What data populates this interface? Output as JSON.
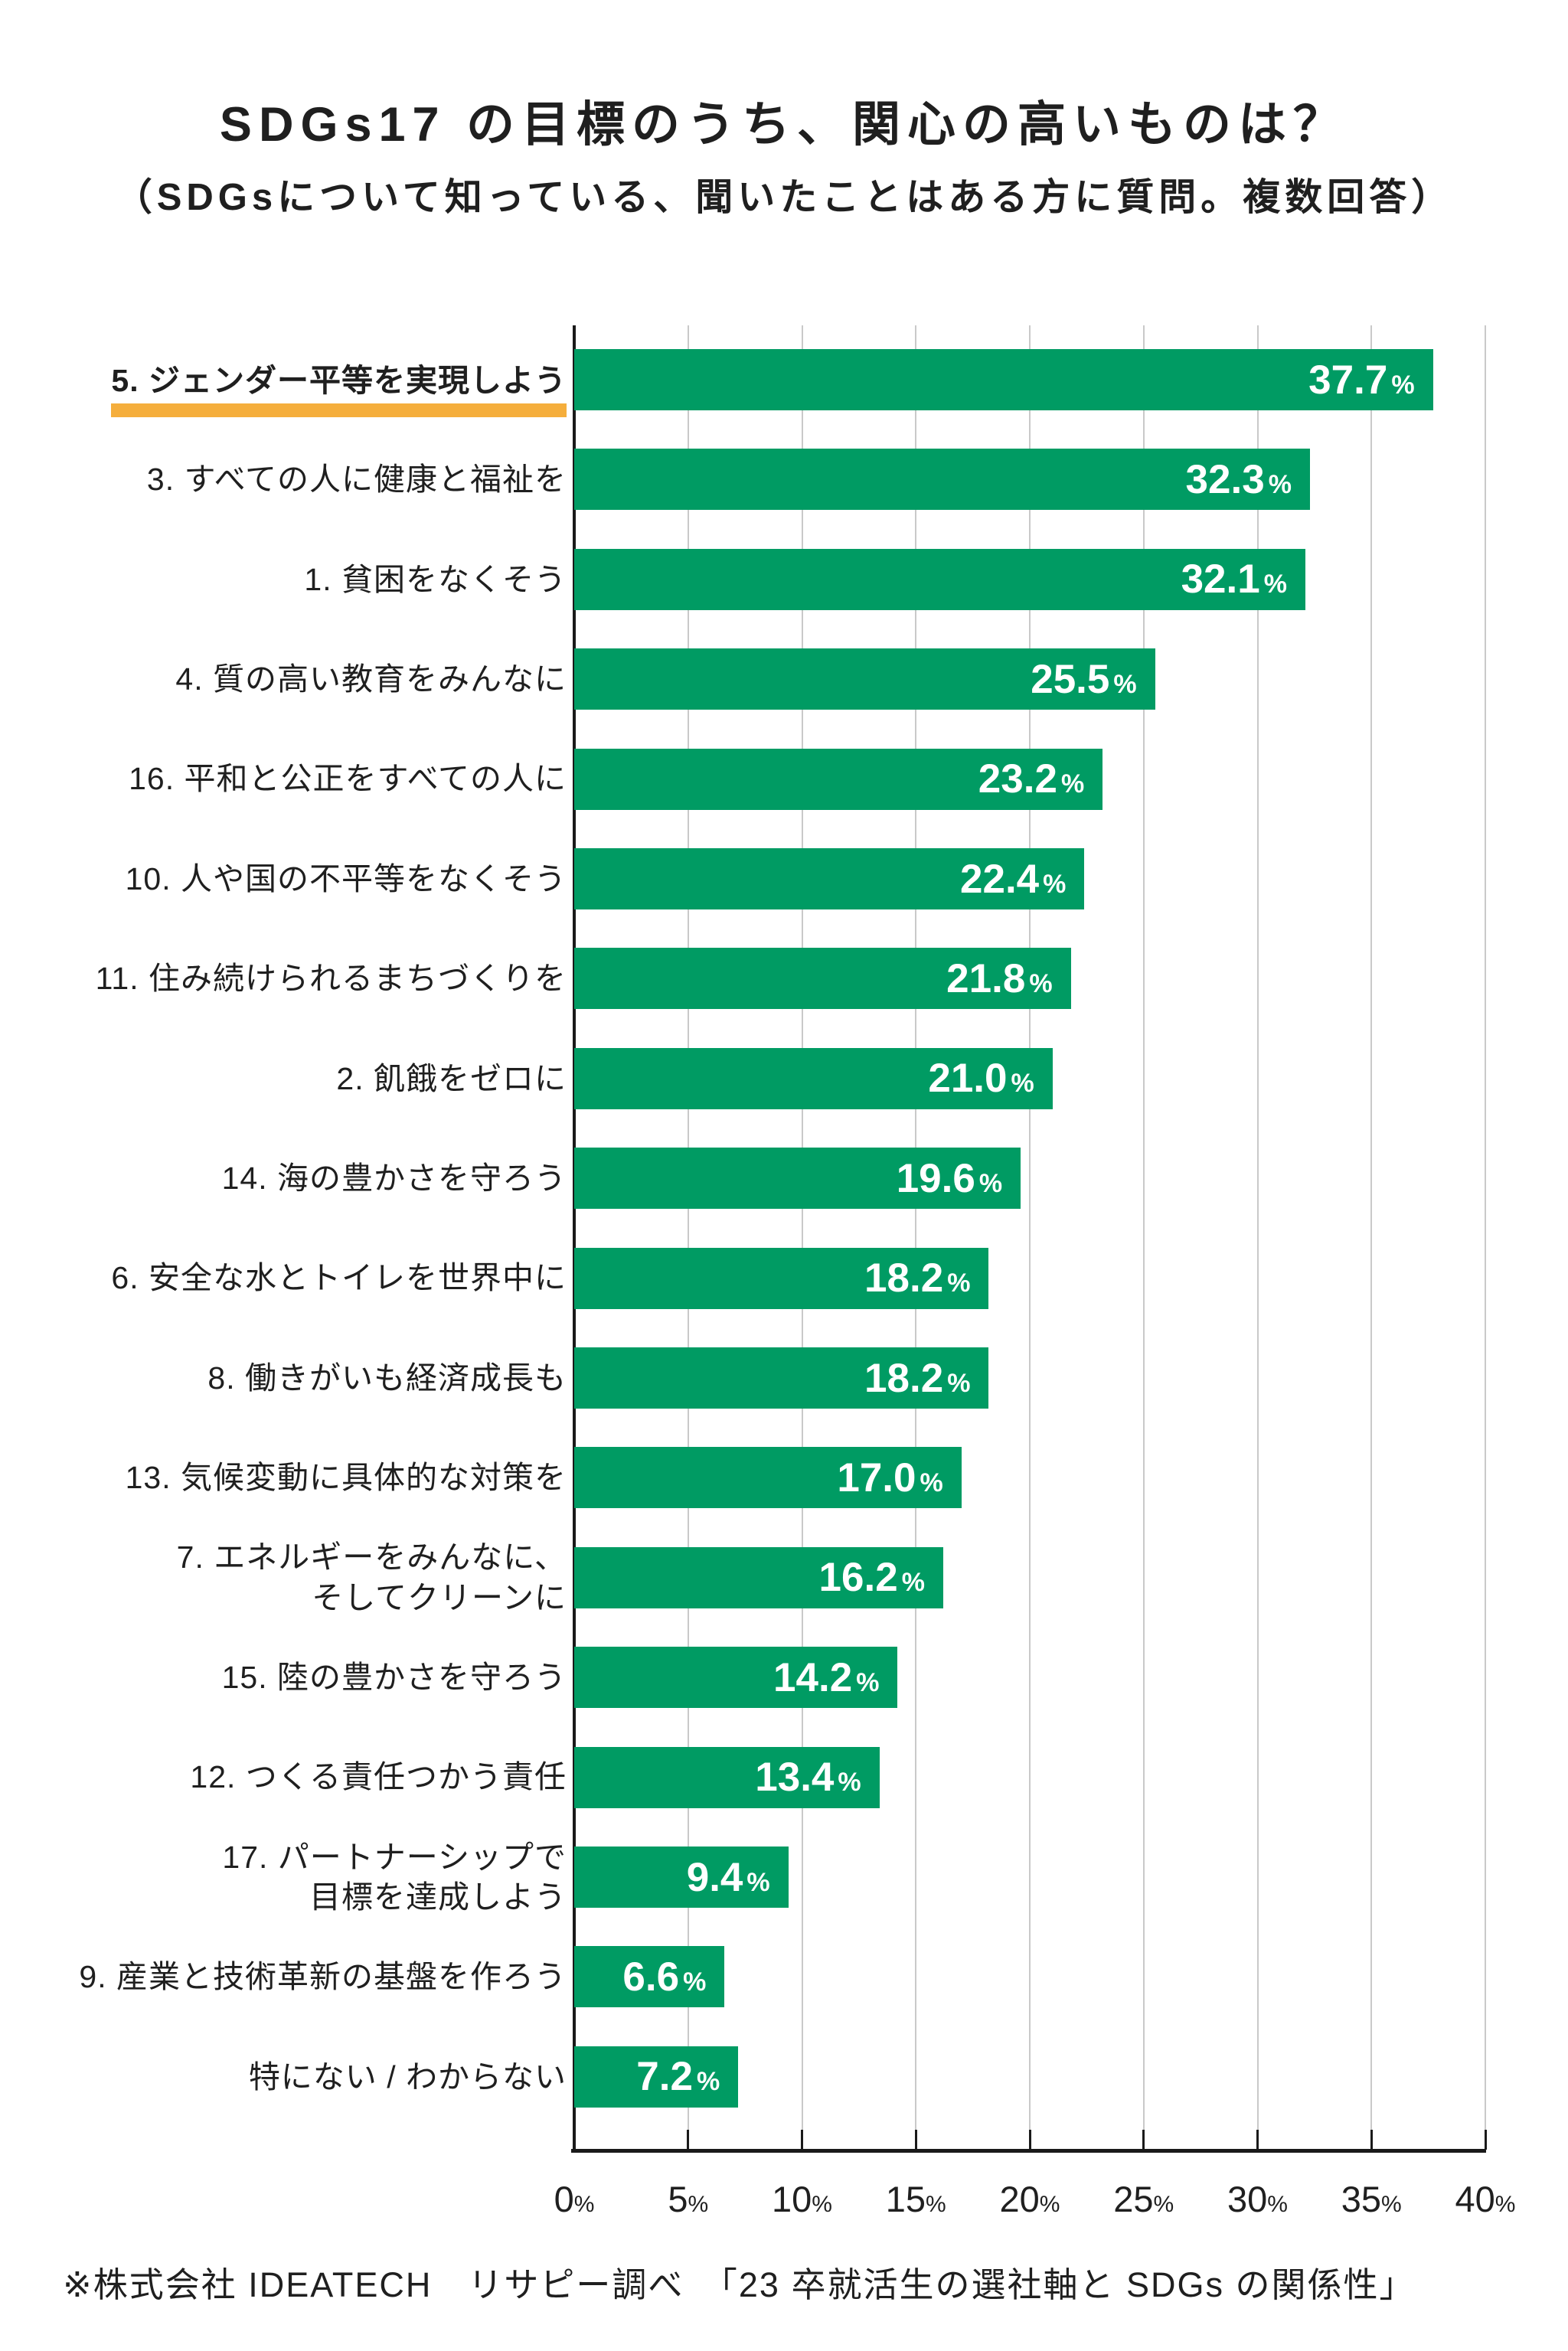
{
  "header": {
    "title": "SDGs17 の目標のうち、関心の高いものは？",
    "subtitle": "（SDGsについて知っている、聞いたことはある方に質問。複数回答）"
  },
  "footer": {
    "note": "※株式会社 IDEATECH　リサピー調べ　「23 卒就活生の選社軸と SDGs の関係性」"
  },
  "colors": {
    "bar": "#009b63",
    "highlight_underline": "#f5ae3c",
    "grid": "#c9c9c9",
    "axis": "#1a1a1a",
    "value_text": "#ffffff"
  },
  "chart_data": {
    "type": "bar",
    "orientation": "horizontal",
    "title": "SDGs17 の目標のうち、関心の高いものは？",
    "subtitle": "（SDGsについて知っている、聞いたことはある方に質問。複数回答）",
    "categories": [
      "5. ジェンダー平等を実現しよう",
      "3. すべての人に健康と福祉を",
      "1. 貧困をなくそう",
      "4. 質の高い教育をみんなに",
      "16. 平和と公正をすべての人に",
      "10. 人や国の不平等をなくそう",
      "11. 住み続けられるまちづくりを",
      "2. 飢餓をゼロに",
      "14. 海の豊かさを守ろう",
      "6. 安全な水とトイレを世界中に",
      "8. 働きがいも経済成長も",
      "13. 気候変動に具体的な対策を",
      "7. エネルギーをみんなに、\nそしてクリーンに",
      "15. 陸の豊かさを守ろう",
      "12. つくる責任つかう責任",
      "17. パートナーシップで\n目標を達成しよう",
      "9. 産業と技術革新の基盤を作ろう",
      "特にない / わからない"
    ],
    "values": [
      37.7,
      32.3,
      32.1,
      25.5,
      23.2,
      22.4,
      21.8,
      21.0,
      19.6,
      18.2,
      18.2,
      17.0,
      16.2,
      14.2,
      13.4,
      9.4,
      6.6,
      7.2
    ],
    "value_suffix": "%",
    "value_decimals": 1,
    "xlim": [
      0,
      40
    ],
    "xticks": [
      0,
      5,
      10,
      15,
      20,
      25,
      30,
      35,
      40
    ],
    "xtick_suffix": "%",
    "grid": true,
    "legend": false,
    "highlighted_index": 0
  }
}
